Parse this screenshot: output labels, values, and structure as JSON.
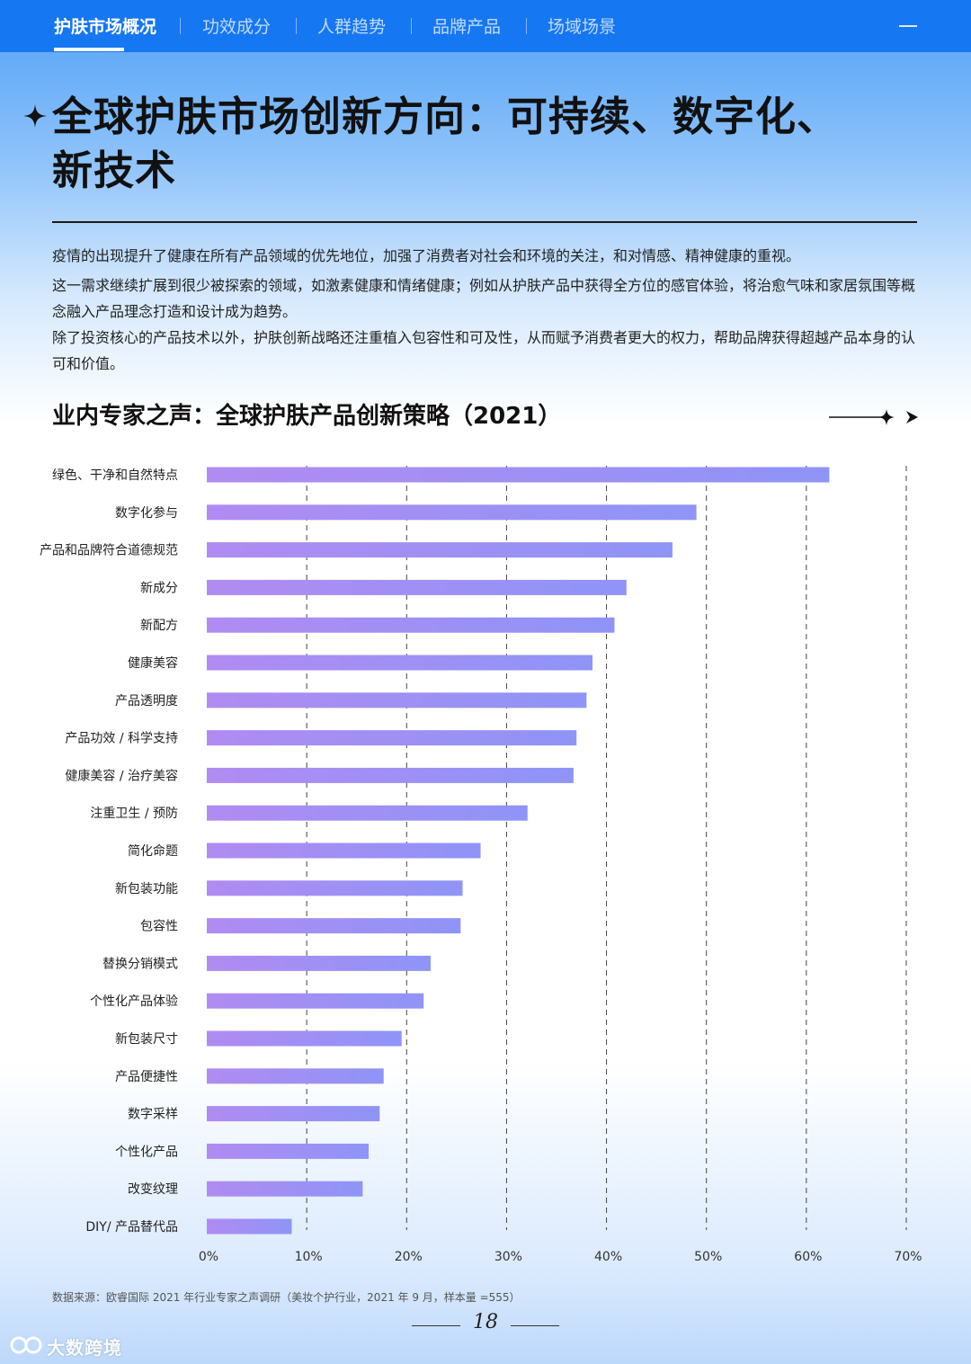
{
  "nav": {
    "tabs": [
      {
        "label": "护肤市场概况",
        "active": true
      },
      {
        "label": "功效成分",
        "active": false
      },
      {
        "label": "人群趋势",
        "active": false
      },
      {
        "label": "品牌产品",
        "active": false
      },
      {
        "label": "场域场景",
        "active": false
      }
    ]
  },
  "header": {
    "title_line1": "全球护肤市场创新方向：可持续、数字化、",
    "title_line2": "新技术"
  },
  "body": {
    "p1": "疫情的出现提升了健康在所有产品领域的优先地位，加强了消费者对社会和环境的关注，和对情感、精神健康的重视。",
    "p2": "这一需求继续扩展到很少被探索的领域，如激素健康和情绪健康；例如从护肤产品中获得全方位的感官体验，将治愈气味和家居氛围等概念融入产品理念打造和设计成为趋势。",
    "p3": "除了投资核心的产品技术以外，护肤创新战略还注重植入包容性和可及性，从而赋予消费者更大的权力，帮助品牌获得超越产品本身的认可和价值。"
  },
  "chart_data": {
    "type": "bar",
    "orientation": "horizontal",
    "title": "业内专家之声：全球护肤产品创新策略（2021）",
    "categories": [
      "绿色、干净和自然特点",
      "数字化参与",
      "产品和品牌符合道德规范",
      "新成分",
      "新配方",
      "健康美容",
      "产品透明度",
      "产品功效 / 科学支持",
      "健康美容 / 治疗美容",
      "注重卫生 / 预防",
      "简化命题",
      "新包装功能",
      "包容性",
      "替换分销模式",
      "个性化产品体验",
      "新包装尺寸",
      "产品便捷性",
      "数字采样",
      "个性化产品",
      "改变纹理",
      "DIY/ 产品替代品"
    ],
    "values": [
      62.3,
      49,
      46.6,
      42,
      40.8,
      38.6,
      38,
      37,
      36.7,
      32.1,
      27.4,
      25.6,
      25.4,
      22.4,
      21.7,
      19.5,
      17.7,
      17.3,
      16.2,
      15.6,
      8.5
    ],
    "xlim": [
      0,
      70
    ],
    "xticks": [
      "0%",
      "10%",
      "20%",
      "30%",
      "40%",
      "50%",
      "60%",
      "70%"
    ],
    "grid": "vertical dashed",
    "bar_color_start": "#b08bf2",
    "bar_color_end": "#8f94f7"
  },
  "footer": {
    "source": "数据来源：欧睿国际 2021 年行业专家之声调研（美妆个护行业，2021 年 9 月，样本量 =555）",
    "page_number": "18",
    "watermark": "大数跨境"
  }
}
